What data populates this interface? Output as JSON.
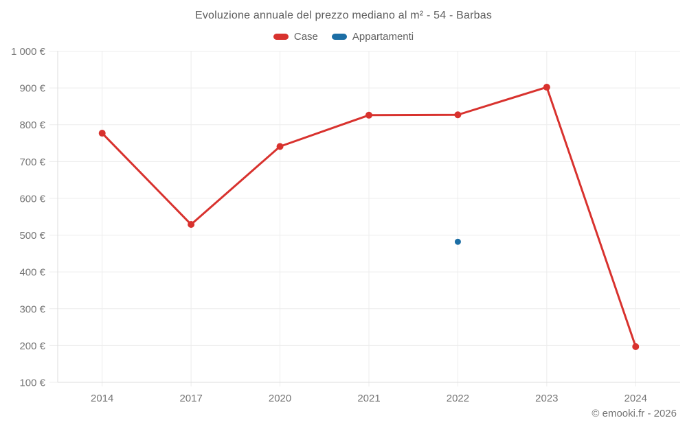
{
  "title": "Evoluzione annuale del prezzo mediano al m² - 54 - Barbas",
  "footer": "© emooki.fr - 2026",
  "legend": [
    {
      "label": "Case",
      "color": "#d8322e"
    },
    {
      "label": "Appartamenti",
      "color": "#1c6ea5"
    }
  ],
  "colors": {
    "case": "#d8322e",
    "appartamenti": "#1c6ea5",
    "grid": "#ececec",
    "axis": "#dedede",
    "tick_text": "#757575",
    "title_text": "#5d5d5d"
  },
  "chart_data": {
    "type": "line",
    "title": "Evoluzione annuale del prezzo mediano al m² - 54 - Barbas",
    "categories": [
      "2014",
      "2017",
      "2020",
      "2021",
      "2022",
      "2023",
      "2024"
    ],
    "series": [
      {
        "name": "Case",
        "color": "#d8322e",
        "values": [
          777,
          529,
          741,
          826,
          827,
          902,
          197
        ]
      },
      {
        "name": "Appartamenti",
        "color": "#1c6ea5",
        "values": [
          null,
          null,
          null,
          null,
          482,
          null,
          null
        ]
      }
    ],
    "xlabel": "",
    "ylabel": "",
    "ylim": [
      100,
      1000
    ],
    "y_ticks": [
      100,
      200,
      300,
      400,
      500,
      600,
      700,
      800,
      900,
      1000
    ],
    "y_tick_labels": [
      "100 €",
      "200 €",
      "300 €",
      "400 €",
      "500 €",
      "600 €",
      "700 €",
      "800 €",
      "900 €",
      "1 000 €"
    ],
    "grid": true,
    "legend_position": "top",
    "unit": "€"
  }
}
